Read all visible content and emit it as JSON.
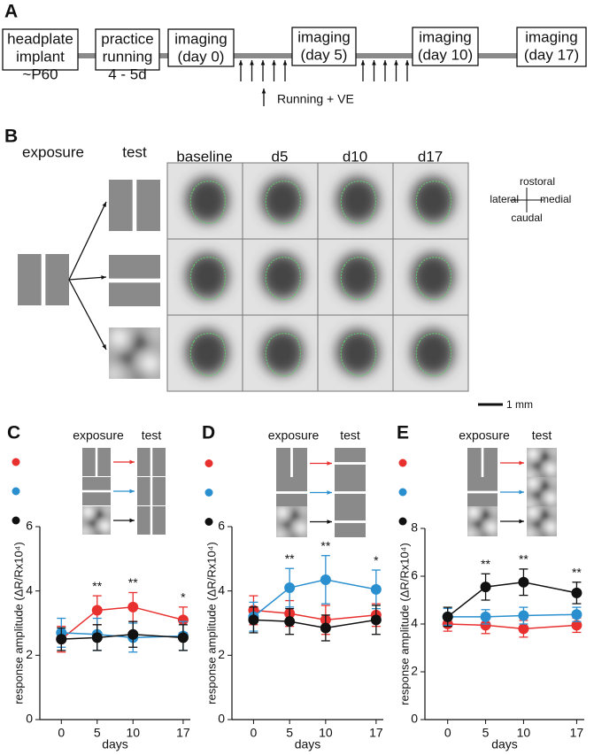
{
  "panel_a": {
    "label": "A",
    "boxes": [
      {
        "lines": [
          "headplate",
          "implant",
          "~P60"
        ]
      },
      {
        "lines": [
          "practice",
          "running",
          "4 - 5d"
        ]
      },
      {
        "lines": [
          "imaging",
          "(day 0)"
        ]
      },
      {
        "lines": [
          "imaging",
          "(day 5)"
        ]
      },
      {
        "lines": [
          "imaging",
          "(day 10)"
        ]
      },
      {
        "lines": [
          "imaging",
          "(day 17)"
        ]
      }
    ],
    "arrow_label": "Running + VE"
  },
  "panel_b": {
    "label": "B",
    "exposure": "exposure",
    "test": "test",
    "columns": [
      "baseline",
      "d5",
      "d10",
      "d17"
    ],
    "orientation": {
      "rostral": "rostoral",
      "lateral": "lateral",
      "medial": "medial",
      "caudal": "caudal"
    },
    "scale_bar": "1 mm"
  },
  "chart_data": [
    {
      "type": "line",
      "label": "C",
      "exposure": "exposure",
      "test": "test",
      "xlabel": "days",
      "ylabel": "response amplitude (ΔR/Rx10⁴)",
      "x": [
        0,
        5,
        10,
        17
      ],
      "xticks": [
        0,
        5,
        10,
        17
      ],
      "xlim": [
        -3,
        18
      ],
      "ylim": [
        0,
        6
      ],
      "yticks": [
        0,
        2,
        4,
        6
      ],
      "series": [
        {
          "color": "#e8312f",
          "values": [
            2.5,
            3.4,
            3.5,
            3.1
          ],
          "errors": [
            0.4,
            0.45,
            0.45,
            0.4
          ]
        },
        {
          "color": "#2a8fcf",
          "values": [
            2.7,
            2.65,
            2.55,
            2.6
          ],
          "errors": [
            0.45,
            0.5,
            0.45,
            0.45
          ]
        },
        {
          "color": "#111111",
          "values": [
            2.5,
            2.55,
            2.65,
            2.55
          ],
          "errors": [
            0.35,
            0.4,
            0.4,
            0.4
          ]
        }
      ],
      "annotations": [
        {
          "x": 5,
          "label": "**"
        },
        {
          "x": 10,
          "label": "**"
        },
        {
          "x": 17,
          "label": "*"
        }
      ]
    },
    {
      "type": "line",
      "label": "D",
      "exposure": "exposure",
      "test": "test",
      "xlabel": "days",
      "ylabel": "response amplitude (ΔR/Rx10⁴)",
      "x": [
        0,
        5,
        10,
        17
      ],
      "xticks": [
        0,
        5,
        10,
        17
      ],
      "xlim": [
        -3,
        18
      ],
      "ylim": [
        0,
        6
      ],
      "yticks": [
        0,
        2,
        4,
        6
      ],
      "series": [
        {
          "color": "#e8312f",
          "values": [
            3.4,
            3.3,
            3.1,
            3.25
          ],
          "errors": [
            0.45,
            0.4,
            0.45,
            0.35
          ]
        },
        {
          "color": "#2a8fcf",
          "values": [
            3.2,
            4.1,
            4.35,
            4.05
          ],
          "errors": [
            0.45,
            0.6,
            0.75,
            0.6
          ]
        },
        {
          "color": "#111111",
          "values": [
            3.1,
            3.05,
            2.85,
            3.1
          ],
          "errors": [
            0.4,
            0.4,
            0.4,
            0.45
          ]
        }
      ],
      "annotations": [
        {
          "x": 5,
          "label": "**"
        },
        {
          "x": 10,
          "label": "**"
        },
        {
          "x": 17,
          "label": "*"
        }
      ]
    },
    {
      "type": "line",
      "label": "E",
      "exposure": "exposure",
      "test": "test",
      "xlabel": "days",
      "ylabel": "response amplitude (ΔR/Rx10⁴)",
      "x": [
        0,
        5,
        10,
        17
      ],
      "xticks": [
        0,
        5,
        10,
        17
      ],
      "xlim": [
        -3,
        18
      ],
      "ylim": [
        0,
        8
      ],
      "yticks": [
        0,
        2,
        4,
        6,
        8
      ],
      "series": [
        {
          "color": "#e8312f",
          "values": [
            4.0,
            3.95,
            3.8,
            3.95
          ],
          "errors": [
            0.3,
            0.35,
            0.35,
            0.3
          ]
        },
        {
          "color": "#2a8fcf",
          "values": [
            4.3,
            4.3,
            4.35,
            4.4
          ],
          "errors": [
            0.35,
            0.3,
            0.35,
            0.3
          ]
        },
        {
          "color": "#111111",
          "values": [
            4.3,
            5.55,
            5.75,
            5.3
          ],
          "errors": [
            0.4,
            0.55,
            0.55,
            0.45
          ]
        }
      ],
      "annotations": [
        {
          "x": 5,
          "label": "**"
        },
        {
          "x": 10,
          "label": "**"
        },
        {
          "x": 17,
          "label": "**"
        }
      ]
    }
  ]
}
